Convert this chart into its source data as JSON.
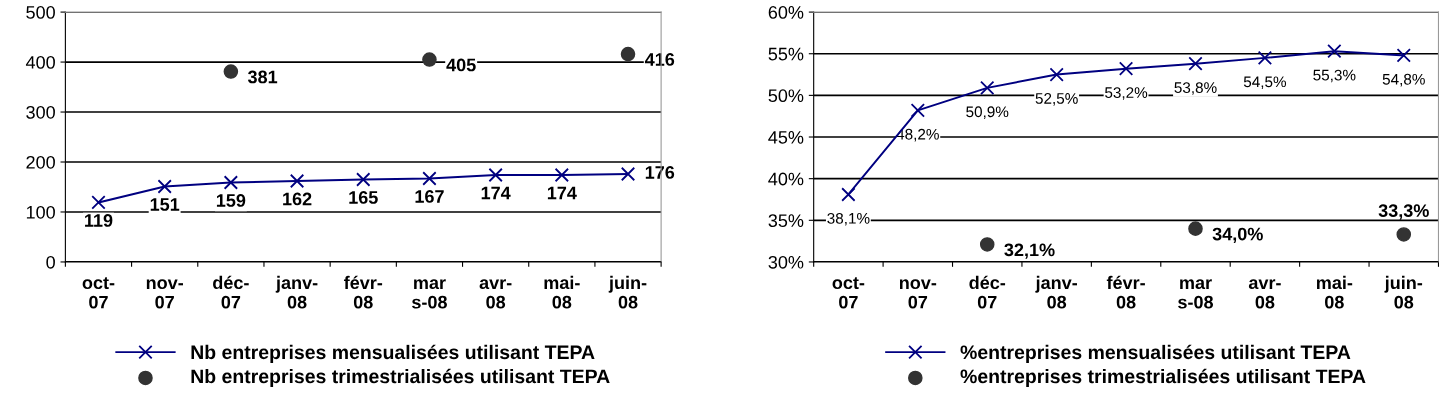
{
  "chart_data": [
    {
      "type": "line",
      "categories": [
        "oct-\n07",
        "nov-\n07",
        "déc-\n07",
        "janv-\n08",
        "févr-\n08",
        "mar\ns-08",
        "avr-\n08",
        "mai-\n08",
        "juin-\n08"
      ],
      "ylim": [
        0,
        500
      ],
      "yticks": [
        0,
        100,
        200,
        300,
        400,
        500
      ],
      "grid": "y",
      "legend": "bottom",
      "series": [
        {
          "name": "Nb entreprises mensualisées utilisant TEPA",
          "color": "#000080",
          "marker": "cross",
          "values": [
            119,
            151,
            159,
            162,
            165,
            167,
            174,
            174,
            176
          ],
          "value_labels": [
            "119",
            "151",
            "159",
            "162",
            "165",
            "167",
            "174",
            "174",
            "176"
          ]
        },
        {
          "name": "Nb entreprises trimestrialisées utilisant TEPA",
          "type": "scatter",
          "color": "#333333",
          "marker": "circle",
          "values": [
            null,
            null,
            381,
            null,
            null,
            405,
            null,
            null,
            416
          ],
          "value_labels": [
            null,
            null,
            "381",
            null,
            null,
            "405",
            null,
            null,
            "416"
          ]
        }
      ]
    },
    {
      "type": "line",
      "categories": [
        "oct-\n07",
        "nov-\n07",
        "déc-\n07",
        "janv-\n08",
        "févr-\n08",
        "mar\ns-08",
        "avr-\n08",
        "mai-\n08",
        "juin-\n08"
      ],
      "ylim": [
        30,
        60
      ],
      "yticks": [
        {
          "value": 30,
          "label": "30%"
        },
        {
          "value": 35,
          "label": "35%"
        },
        {
          "value": 40,
          "label": "40%"
        },
        {
          "value": 45,
          "label": "45%"
        },
        {
          "value": 50,
          "label": "50%"
        },
        {
          "value": 55,
          "label": "55%"
        },
        {
          "value": 60,
          "label": "60%"
        }
      ],
      "grid": "y",
      "legend": "bottom",
      "series": [
        {
          "name": "%entreprises mensualisées utilisant TEPA",
          "color": "#000080",
          "marker": "cross",
          "values": [
            38.1,
            48.2,
            50.9,
            52.5,
            53.2,
            53.8,
            54.5,
            55.3,
            54.8
          ],
          "value_labels": [
            "38,1%",
            "48,2%",
            "50,9%",
            "52,5%",
            "53,2%",
            "53,8%",
            "54,5%",
            "55,3%",
            "54,8%"
          ]
        },
        {
          "name": "%entreprises trimestrialisées utilisant TEPA",
          "type": "scatter",
          "color": "#333333",
          "marker": "circle",
          "values": [
            null,
            null,
            32.1,
            null,
            null,
            34.0,
            null,
            null,
            33.3
          ],
          "value_labels": [
            null,
            null,
            "32,1%",
            null,
            null,
            "34,0%",
            null,
            null,
            "33,3%"
          ]
        }
      ]
    }
  ]
}
